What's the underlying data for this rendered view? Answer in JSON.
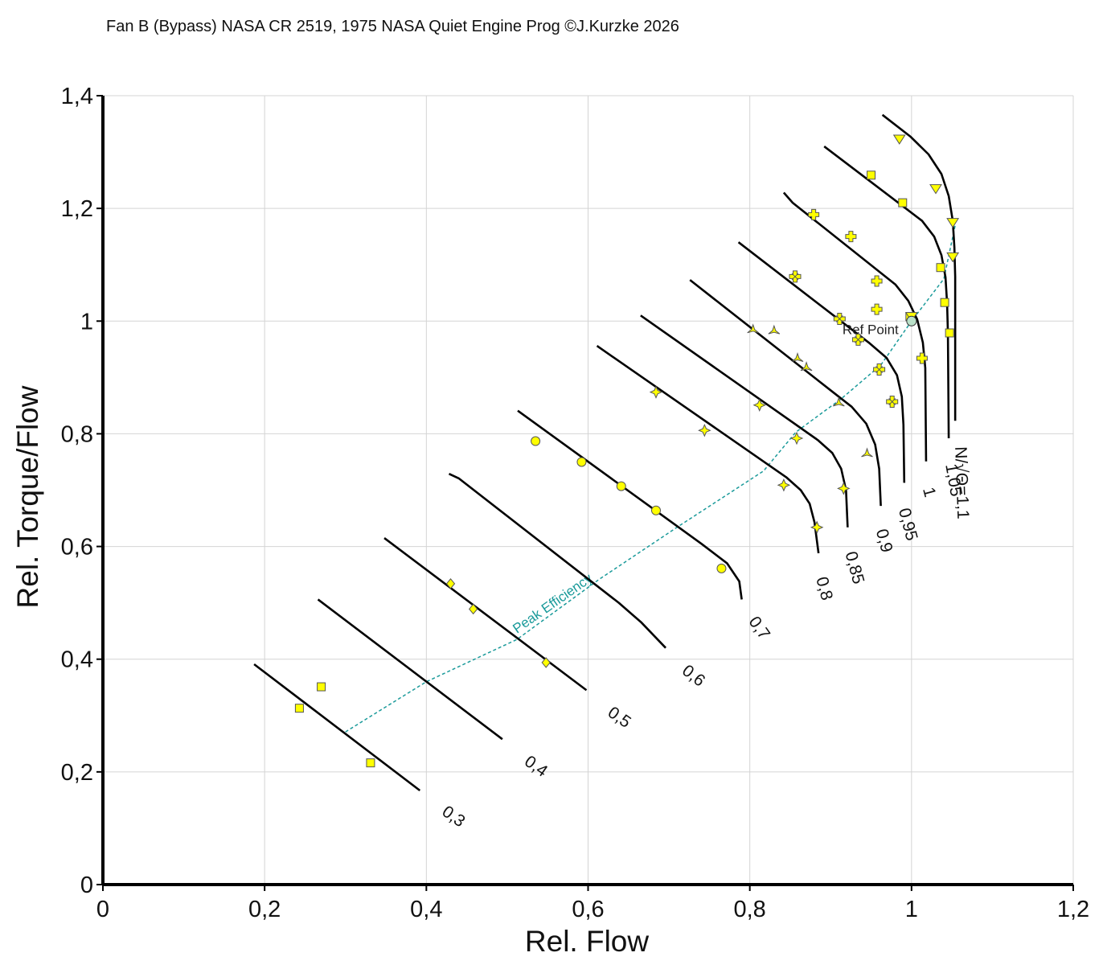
{
  "chart_data": {
    "type": "line",
    "title": "Fan B (Bypass) NASA CR 2519, 1975 NASA Quiet Engine Prog ©J.Kurzke 2026",
    "xlabel": "Rel. Flow",
    "ylabel": "Rel. Torque/Flow",
    "xlim": [
      0,
      1.2
    ],
    "ylim": [
      0,
      1.4
    ],
    "xticks": [
      "0",
      "0,2",
      "0,4",
      "0,6",
      "0,8",
      "1",
      "1,2"
    ],
    "yticks": [
      "0",
      "0,2",
      "0,4",
      "0,6",
      "0,8",
      "1",
      "1,2",
      "1,4"
    ],
    "grid": true,
    "colors": {
      "speed_line": "#000000",
      "marker_fill": "#ffff00",
      "marker_edge": "#555555",
      "peak_efficiency": "#1a9a9a",
      "ref_point": "#b9e0c8"
    },
    "speed_lines": [
      {
        "label": "0,3",
        "points": [
          [
            0.187,
            0.391
          ],
          [
            0.392,
            0.167
          ]
        ]
      },
      {
        "label": "0,4",
        "points": [
          [
            0.266,
            0.506
          ],
          [
            0.494,
            0.258
          ]
        ]
      },
      {
        "label": "0,5",
        "points": [
          [
            0.348,
            0.615
          ],
          [
            0.598,
            0.345
          ]
        ]
      },
      {
        "label": "0,6",
        "points": [
          [
            0.428,
            0.729
          ],
          [
            0.44,
            0.721
          ],
          [
            0.638,
            0.5
          ],
          [
            0.666,
            0.465
          ],
          [
            0.696,
            0.42
          ]
        ]
      },
      {
        "label": "0,7",
        "points": [
          [
            0.513,
            0.841
          ],
          [
            0.74,
            0.605
          ],
          [
            0.772,
            0.57
          ],
          [
            0.787,
            0.538
          ],
          [
            0.79,
            0.506
          ]
        ]
      },
      {
        "label": "0,8",
        "points": [
          [
            0.611,
            0.956
          ],
          [
            0.845,
            0.723
          ],
          [
            0.863,
            0.7
          ],
          [
            0.874,
            0.676
          ],
          [
            0.88,
            0.643
          ],
          [
            0.885,
            0.588
          ]
        ]
      },
      {
        "label": "0,85",
        "points": [
          [
            0.665,
            1.01
          ],
          [
            0.884,
            0.789
          ],
          [
            0.902,
            0.766
          ],
          [
            0.913,
            0.738
          ],
          [
            0.919,
            0.7
          ],
          [
            0.921,
            0.634
          ]
        ]
      },
      {
        "label": "0,9",
        "points": [
          [
            0.726,
            1.073
          ],
          [
            0.901,
            0.876
          ],
          [
            0.926,
            0.848
          ],
          [
            0.944,
            0.818
          ],
          [
            0.955,
            0.781
          ],
          [
            0.96,
            0.738
          ],
          [
            0.962,
            0.672
          ]
        ]
      },
      {
        "label": "0,95",
        "points": [
          [
            0.786,
            1.14
          ],
          [
            0.947,
            0.962
          ],
          [
            0.969,
            0.935
          ],
          [
            0.982,
            0.904
          ],
          [
            0.988,
            0.866
          ],
          [
            0.99,
            0.816
          ],
          [
            0.991,
            0.713
          ]
        ]
      },
      {
        "label": "1",
        "points": [
          [
            0.842,
            1.228
          ],
          [
            0.853,
            1.21
          ],
          [
            0.98,
            1.065
          ],
          [
            0.996,
            1.036
          ],
          [
            1.007,
            1.003
          ],
          [
            1.014,
            0.962
          ],
          [
            1.017,
            0.917
          ],
          [
            1.018,
            0.751
          ]
        ]
      },
      {
        "label": "1,05",
        "points": [
          [
            0.892,
            1.31
          ],
          [
            1.013,
            1.178
          ],
          [
            1.028,
            1.15
          ],
          [
            1.037,
            1.117
          ],
          [
            1.042,
            1.078
          ],
          [
            1.044,
            1.031
          ],
          [
            1.045,
            0.978
          ],
          [
            1.046,
            0.792
          ]
        ]
      },
      {
        "label": "N/√Θ=1,1",
        "points": [
          [
            0.964,
            1.366
          ],
          [
            0.999,
            1.327
          ],
          [
            1.021,
            1.296
          ],
          [
            1.037,
            1.261
          ],
          [
            1.046,
            1.222
          ],
          [
            1.051,
            1.178
          ],
          [
            1.053,
            1.131
          ],
          [
            1.054,
            1.079
          ],
          [
            1.054,
            0.823
          ]
        ]
      }
    ],
    "peak_efficiency": {
      "label": "Peak Efficiency",
      "points": [
        [
          0.3,
          0.271
        ],
        [
          0.4,
          0.36
        ],
        [
          0.512,
          0.435
        ],
        [
          0.613,
          0.541
        ],
        [
          0.712,
          0.636
        ],
        [
          0.817,
          0.734
        ],
        [
          0.857,
          0.803
        ],
        [
          0.913,
          0.862
        ],
        [
          0.962,
          0.922
        ],
        [
          1.0,
          1.0
        ],
        [
          1.04,
          1.075
        ],
        [
          1.054,
          1.17
        ]
      ]
    },
    "ref_point": {
      "label": "Ref Point",
      "x": 1.0,
      "y": 1.0
    },
    "measured_points": [
      {
        "speed": "0,3",
        "marker": "square",
        "points": [
          [
            0.243,
            0.313
          ],
          [
            0.27,
            0.351
          ],
          [
            0.331,
            0.216
          ]
        ]
      },
      {
        "speed": "0,5",
        "marker": "diamond",
        "points": [
          [
            0.43,
            0.534
          ],
          [
            0.458,
            0.489
          ],
          [
            0.548,
            0.394
          ]
        ]
      },
      {
        "speed": "0,7",
        "marker": "circle",
        "points": [
          [
            0.535,
            0.787
          ],
          [
            0.592,
            0.75
          ],
          [
            0.641,
            0.707
          ],
          [
            0.684,
            0.664
          ],
          [
            0.765,
            0.561
          ]
        ]
      },
      {
        "speed": "0,8",
        "marker": "star",
        "points": [
          [
            0.684,
            0.874
          ],
          [
            0.744,
            0.806
          ],
          [
            0.842,
            0.709
          ],
          [
            0.883,
            0.634
          ]
        ]
      },
      {
        "speed": "0,85",
        "marker": "star",
        "points": [
          [
            0.812,
            0.851
          ],
          [
            0.858,
            0.792
          ],
          [
            0.916,
            0.703
          ]
        ]
      },
      {
        "speed": "0,9",
        "marker": "tri",
        "points": [
          [
            0.804,
            0.985
          ],
          [
            0.83,
            0.983
          ],
          [
            0.859,
            0.934
          ],
          [
            0.87,
            0.918
          ],
          [
            0.91,
            0.855
          ],
          [
            0.945,
            0.765
          ]
        ]
      },
      {
        "speed": "0,95",
        "marker": "cross",
        "points": [
          [
            0.856,
            1.079
          ],
          [
            0.911,
            1.004
          ],
          [
            0.934,
            0.967
          ],
          [
            0.96,
            0.914
          ],
          [
            0.976,
            0.857
          ]
        ]
      },
      {
        "speed": "1",
        "marker": "plus",
        "points": [
          [
            0.879,
            1.189
          ],
          [
            0.925,
            1.15
          ],
          [
            0.957,
            1.071
          ],
          [
            0.957,
            1.021
          ],
          [
            1.013,
            0.934
          ]
        ]
      },
      {
        "speed": "1,05",
        "marker": "square",
        "points": [
          [
            0.95,
            1.259
          ],
          [
            0.989,
            1.21
          ],
          [
            1.036,
            1.095
          ],
          [
            1.041,
            1.033
          ],
          [
            1.047,
            0.979
          ],
          [
            0.998,
            1.008
          ]
        ]
      },
      {
        "speed": "1,1",
        "marker": "dtri",
        "points": [
          [
            0.985,
            1.323
          ],
          [
            1.0,
            1.008
          ],
          [
            1.03,
            1.235
          ],
          [
            1.051,
            1.175
          ],
          [
            1.051,
            1.114
          ]
        ]
      }
    ]
  }
}
